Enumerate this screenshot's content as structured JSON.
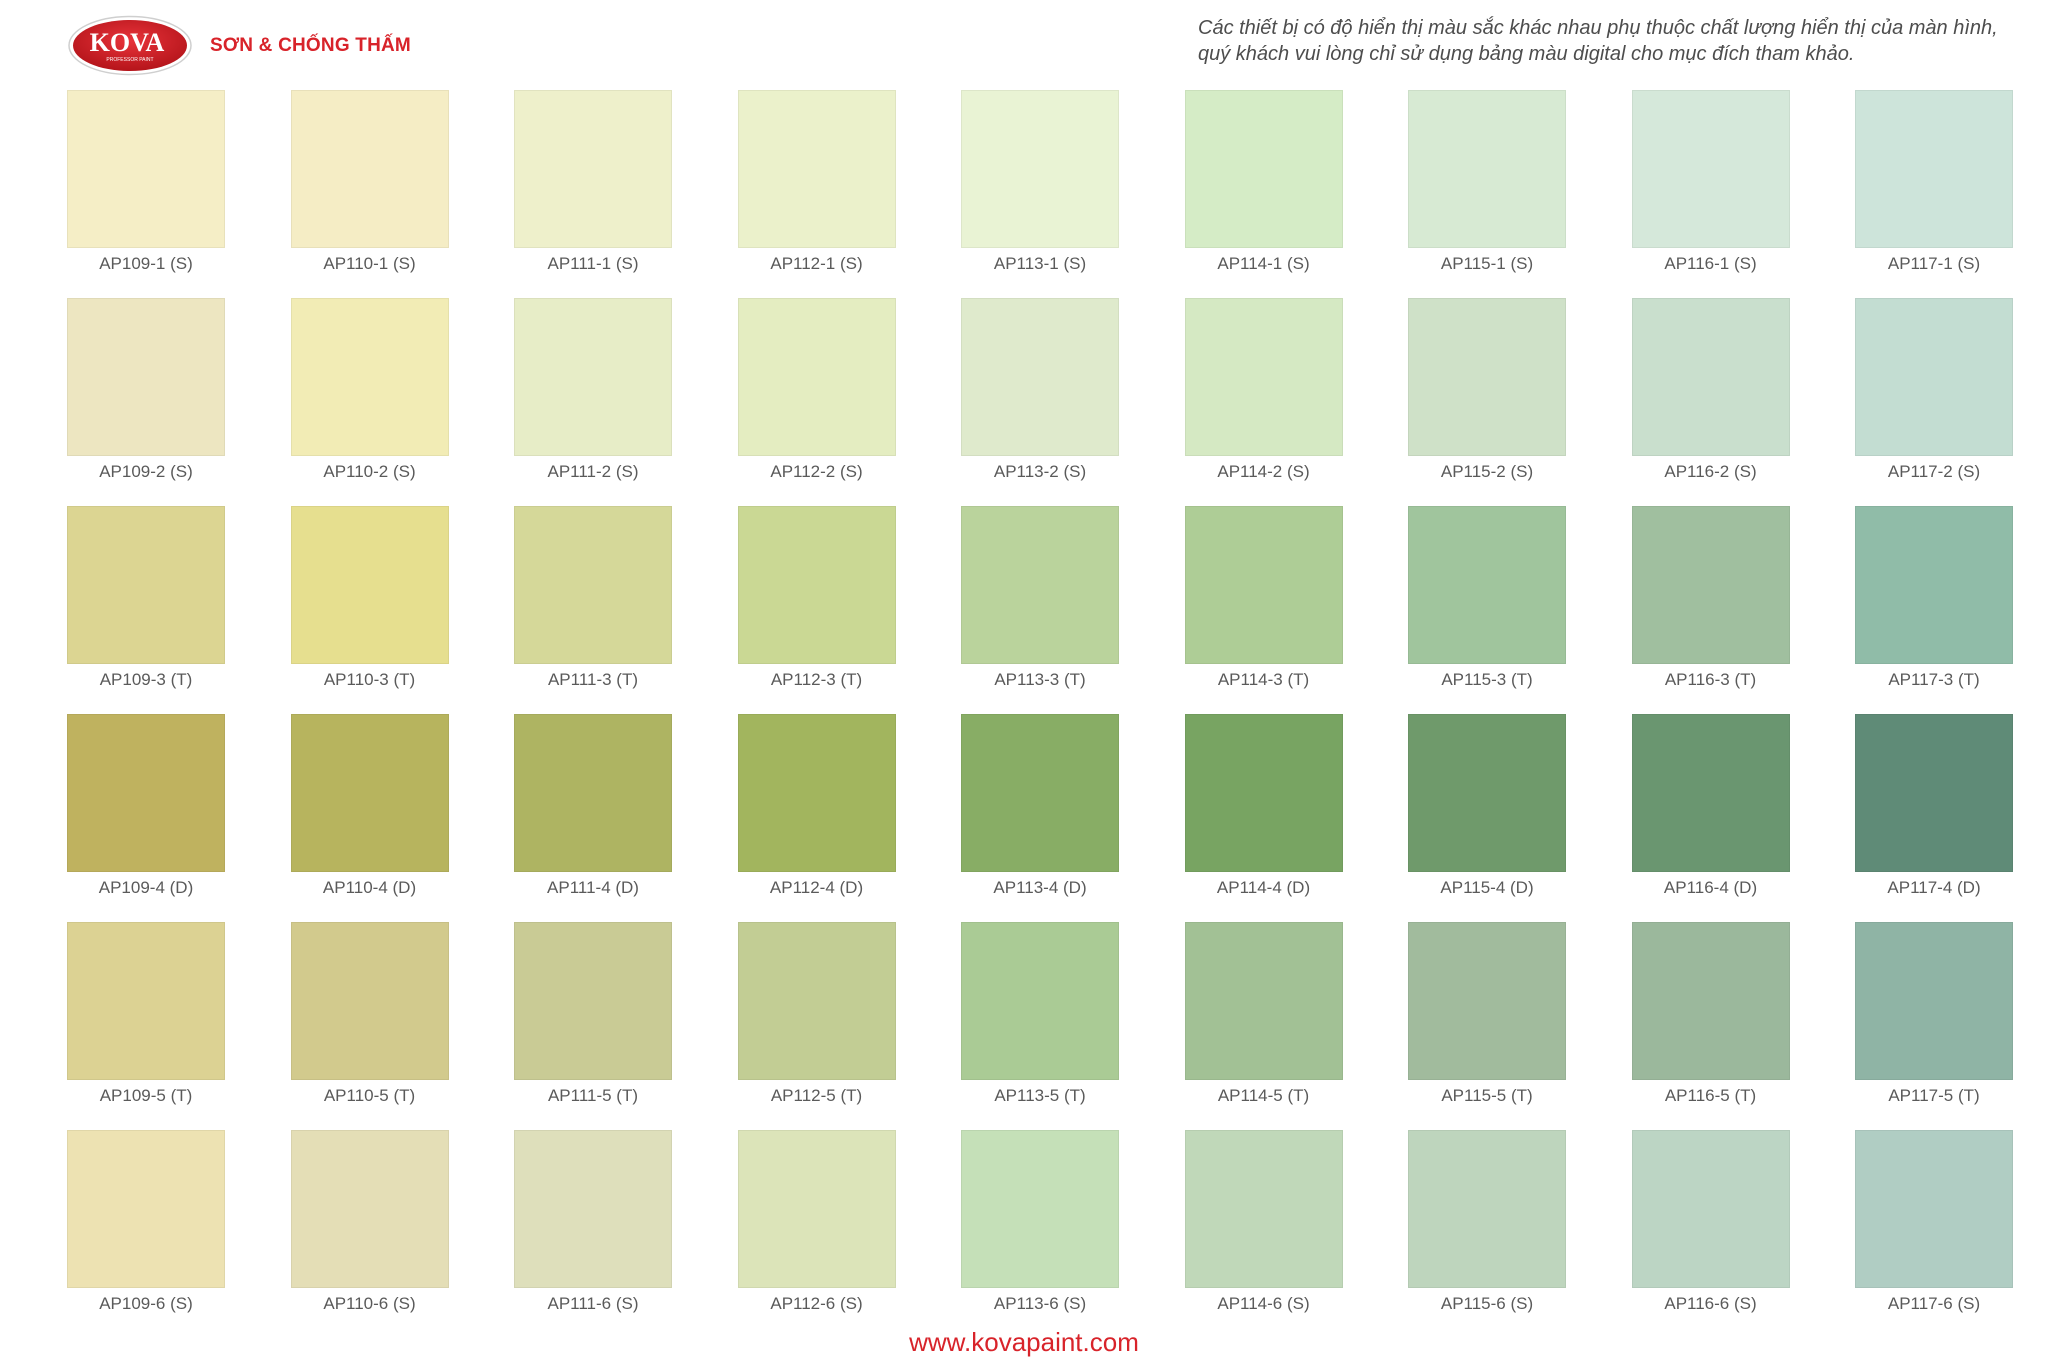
{
  "brand": {
    "logo_text": "KOVA",
    "logo_subtext": "PROFESSOR PAINT",
    "tagline": "SƠN & CHỐNG THẤM",
    "accent_color": "#d8232a"
  },
  "disclaimer": {
    "line1": "Các thiết bị có độ hiển thị màu sắc khác nhau phụ thuộc chất lượng hiển thị của màn hình,",
    "line2": "quý khách vui lòng chỉ sử dụng bảng màu digital cho mục đích tham khảo."
  },
  "swatches": [
    {
      "code": "AP109-1 (S)",
      "color": "#f5eec6"
    },
    {
      "code": "AP110-1 (S)",
      "color": "#f5edc5"
    },
    {
      "code": "AP111-1 (S)",
      "color": "#eef0cb"
    },
    {
      "code": "AP112-1 (S)",
      "color": "#ebf1cb"
    },
    {
      "code": "AP113-1 (S)",
      "color": "#e9f3d4"
    },
    {
      "code": "AP114-1 (S)",
      "color": "#d5ecc6"
    },
    {
      "code": "AP115-1 (S)",
      "color": "#d7ead3"
    },
    {
      "code": "AP116-1 (S)",
      "color": "#d5e8da"
    },
    {
      "code": "AP117-1 (S)",
      "color": "#cde4da"
    },
    {
      "code": "AP109-2 (S)",
      "color": "#ede6c1"
    },
    {
      "code": "AP110-2 (S)",
      "color": "#f2ecb5"
    },
    {
      "code": "AP111-2 (S)",
      "color": "#e7edc7"
    },
    {
      "code": "AP112-2 (S)",
      "color": "#e4edc1"
    },
    {
      "code": "AP113-2 (S)",
      "color": "#dfeacc"
    },
    {
      "code": "AP114-2 (S)",
      "color": "#d5e9c3"
    },
    {
      "code": "AP115-2 (S)",
      "color": "#cfe1c8"
    },
    {
      "code": "AP116-2 (S)",
      "color": "#c9dfcd"
    },
    {
      "code": "AP117-2 (S)",
      "color": "#c3ddd2"
    },
    {
      "code": "AP109-3 (T)",
      "color": "#dcd592"
    },
    {
      "code": "AP110-3 (T)",
      "color": "#e6df8f"
    },
    {
      "code": "AP111-3 (T)",
      "color": "#d5d899"
    },
    {
      "code": "AP112-3 (T)",
      "color": "#cad894"
    },
    {
      "code": "AP113-3 (T)",
      "color": "#bad39c"
    },
    {
      "code": "AP114-3 (T)",
      "color": "#aecd96"
    },
    {
      "code": "AP115-3 (T)",
      "color": "#a0c59d"
    },
    {
      "code": "AP116-3 (T)",
      "color": "#a0bf9f"
    },
    {
      "code": "AP117-3 (T)",
      "color": "#90bca8"
    },
    {
      "code": "AP109-4 (D)",
      "color": "#bfb25f"
    },
    {
      "code": "AP110-4 (D)",
      "color": "#b7b45e"
    },
    {
      "code": "AP111-4 (D)",
      "color": "#aeb462"
    },
    {
      "code": "AP112-4 (D)",
      "color": "#a2b55e"
    },
    {
      "code": "AP113-4 (D)",
      "color": "#88ad65"
    },
    {
      "code": "AP114-4 (D)",
      "color": "#78a462"
    },
    {
      "code": "AP115-4 (D)",
      "color": "#6f9a6b"
    },
    {
      "code": "AP116-4 (D)",
      "color": "#6a9670"
    },
    {
      "code": "AP117-4 (D)",
      "color": "#5f8b77"
    },
    {
      "code": "AP109-5 (T)",
      "color": "#dcd293"
    },
    {
      "code": "AP110-5 (T)",
      "color": "#d2ca8d"
    },
    {
      "code": "AP111-5 (T)",
      "color": "#c9cb95"
    },
    {
      "code": "AP112-5 (T)",
      "color": "#c2cd94"
    },
    {
      "code": "AP113-5 (T)",
      "color": "#aacb95"
    },
    {
      "code": "AP114-5 (T)",
      "color": "#a2c195"
    },
    {
      "code": "AP115-5 (T)",
      "color": "#a1bb9d"
    },
    {
      "code": "AP116-5 (T)",
      "color": "#9bb89c"
    },
    {
      "code": "AP117-5 (T)",
      "color": "#8fb4a5"
    },
    {
      "code": "AP109-6 (S)",
      "color": "#ede2b2"
    },
    {
      "code": "AP110-6 (S)",
      "color": "#e4deb6"
    },
    {
      "code": "AP111-6 (S)",
      "color": "#dedfbb"
    },
    {
      "code": "AP112-6 (S)",
      "color": "#dce4b9"
    },
    {
      "code": "AP113-6 (S)",
      "color": "#c5e0b8"
    },
    {
      "code": "AP114-6 (S)",
      "color": "#c0d8b9"
    },
    {
      "code": "AP115-6 (S)",
      "color": "#bed5bd"
    },
    {
      "code": "AP116-6 (S)",
      "color": "#bcd5c4"
    },
    {
      "code": "AP117-6 (S)",
      "color": "#b0cdc3"
    }
  ],
  "footer": {
    "website": "www.kovapaint.com"
  }
}
